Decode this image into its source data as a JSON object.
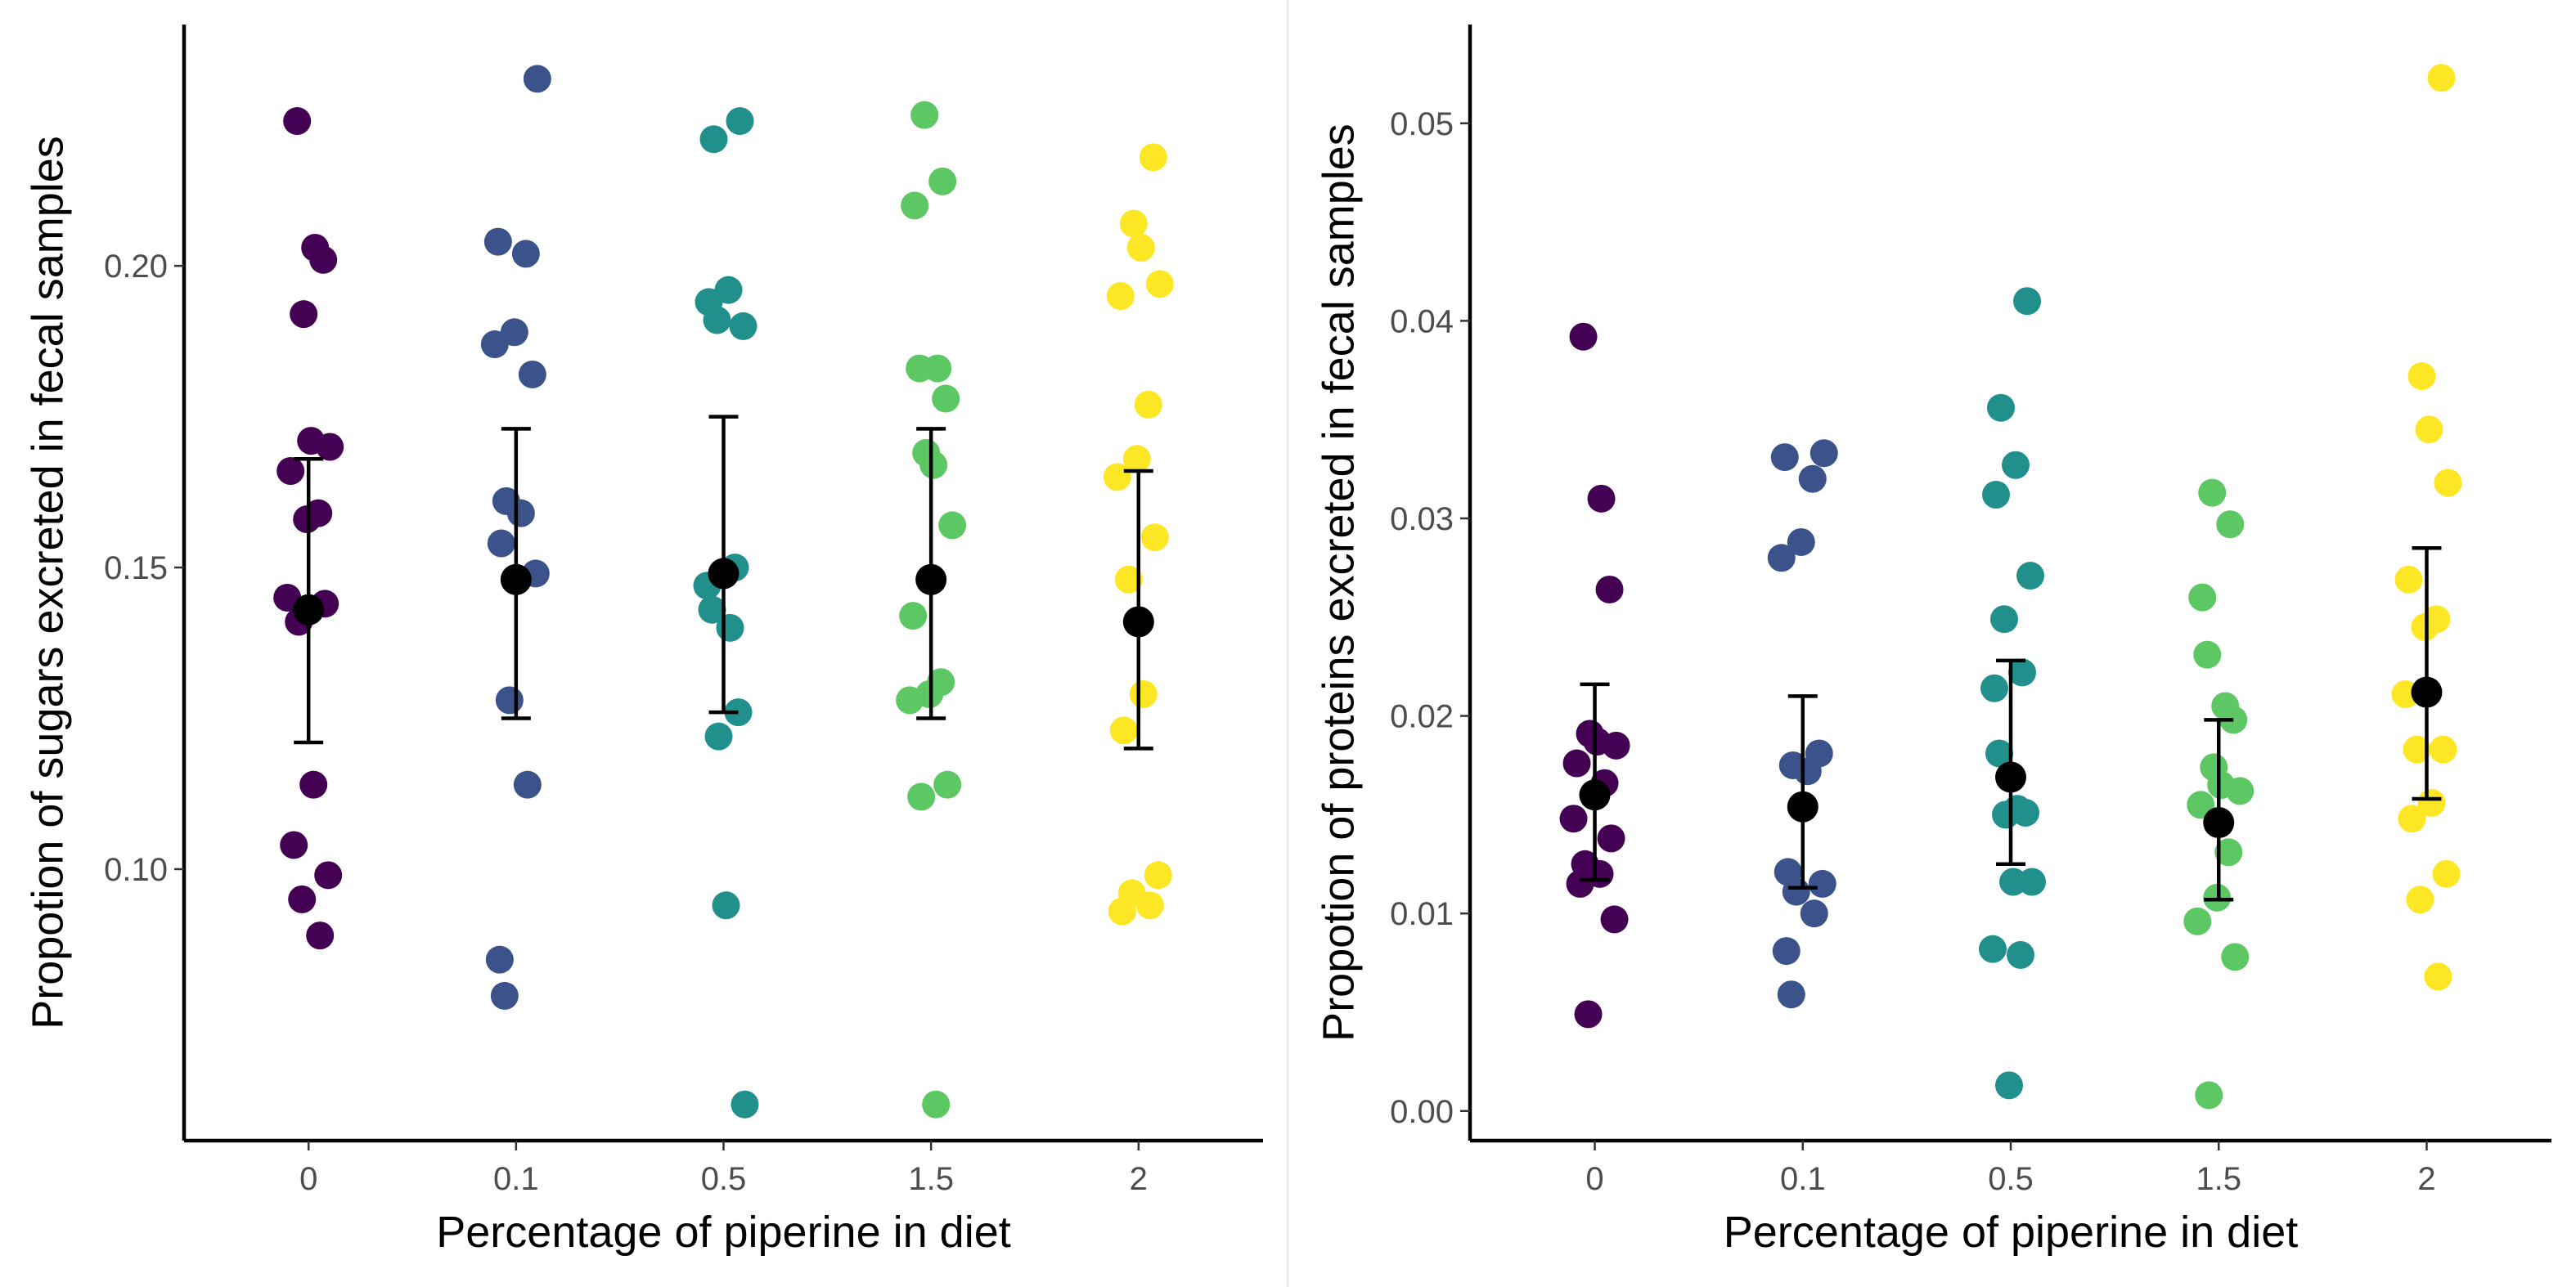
{
  "chart_data": [
    {
      "type": "scatter",
      "title": "",
      "xlabel": "Percentage of piperine in diet",
      "ylabel": "Propotion of sugars excreted in fecal samples",
      "categories": [
        "0",
        "0.1",
        "0.5",
        "1.5",
        "2"
      ],
      "ylim": [
        0.055,
        0.24
      ],
      "yticks": [
        0.1,
        0.15,
        0.2
      ],
      "ytick_labels": [
        "0.10",
        "0.15",
        "0.20"
      ],
      "grid": false,
      "legend": "none",
      "colors": [
        "#440154",
        "#3B528B",
        "#21908C",
        "#5DC863",
        "#FDE725"
      ],
      "points": [
        {
          "category": "0",
          "values": [
            0.224,
            0.203,
            0.201,
            0.192,
            0.171,
            0.17,
            0.166,
            0.159,
            0.158,
            0.145,
            0.144,
            0.141,
            0.114,
            0.104,
            0.099,
            0.095,
            0.089
          ]
        },
        {
          "category": "0.1",
          "values": [
            0.231,
            0.204,
            0.202,
            0.189,
            0.187,
            0.182,
            0.161,
            0.159,
            0.154,
            0.149,
            0.128,
            0.114,
            0.085,
            0.079
          ]
        },
        {
          "category": "0.5",
          "values": [
            0.224,
            0.221,
            0.196,
            0.194,
            0.19,
            0.191,
            0.15,
            0.147,
            0.143,
            0.14,
            0.126,
            0.122,
            0.094,
            0.061
          ]
        },
        {
          "category": "1.5",
          "values": [
            0.225,
            0.214,
            0.21,
            0.183,
            0.183,
            0.178,
            0.169,
            0.167,
            0.157,
            0.142,
            0.131,
            0.129,
            0.128,
            0.114,
            0.112,
            0.061
          ]
        },
        {
          "category": "2",
          "values": [
            0.218,
            0.207,
            0.203,
            0.197,
            0.195,
            0.177,
            0.168,
            0.165,
            0.155,
            0.148,
            0.129,
            0.123,
            0.099,
            0.096,
            0.094,
            0.093
          ]
        }
      ],
      "means": [
        0.143,
        0.148,
        0.149,
        0.148,
        0.141
      ],
      "error_low": [
        0.121,
        0.125,
        0.126,
        0.125,
        0.12
      ],
      "error_high": [
        0.168,
        0.173,
        0.175,
        0.173,
        0.166
      ]
    },
    {
      "type": "scatter",
      "title": "",
      "xlabel": "Percentage of piperine in diet",
      "ylabel": "Propotion of proteins excreted in fecal samples",
      "categories": [
        "0",
        "0.1",
        "0.5",
        "1.5",
        "2"
      ],
      "ylim": [
        -0.0015,
        0.055
      ],
      "yticks": [
        0.0,
        0.01,
        0.02,
        0.03,
        0.04,
        0.05
      ],
      "ytick_labels": [
        "0.00",
        "0.01",
        "0.02",
        "0.03",
        "0.04",
        "0.05"
      ],
      "grid": false,
      "legend": "none",
      "colors": [
        "#440154",
        "#3B528B",
        "#21908C",
        "#5DC863",
        "#FDE725"
      ],
      "points": [
        {
          "category": "0",
          "values": [
            0.0392,
            0.031,
            0.0264,
            0.0191,
            0.0187,
            0.0185,
            0.0176,
            0.0166,
            0.016,
            0.0148,
            0.0138,
            0.0125,
            0.012,
            0.0115,
            0.0097,
            0.0049
          ]
        },
        {
          "category": "0.1",
          "values": [
            0.0333,
            0.0331,
            0.032,
            0.0288,
            0.028,
            0.0181,
            0.0175,
            0.0172,
            0.0121,
            0.0115,
            0.0111,
            0.01,
            0.0081,
            0.0059
          ]
        },
        {
          "category": "0.5",
          "values": [
            0.041,
            0.0356,
            0.0327,
            0.0312,
            0.0271,
            0.0249,
            0.0222,
            0.0214,
            0.0181,
            0.0153,
            0.0151,
            0.015,
            0.0116,
            0.0116,
            0.0082,
            0.0079,
            0.0013
          ]
        },
        {
          "category": "1.5",
          "values": [
            0.0313,
            0.0297,
            0.026,
            0.0231,
            0.0205,
            0.0198,
            0.0174,
            0.0165,
            0.0162,
            0.0155,
            0.0131,
            0.0108,
            0.0096,
            0.0078,
            0.0008
          ]
        },
        {
          "category": "2",
          "values": [
            0.0523,
            0.0372,
            0.0345,
            0.0318,
            0.0269,
            0.0249,
            0.0245,
            0.0211,
            0.0183,
            0.0183,
            0.0156,
            0.0148,
            0.012,
            0.0107,
            0.0068
          ]
        }
      ],
      "means": [
        0.016,
        0.0154,
        0.0169,
        0.0146,
        0.0212
      ],
      "error_low": [
        0.0117,
        0.0113,
        0.0125,
        0.0107,
        0.0158
      ],
      "error_high": [
        0.0216,
        0.021,
        0.0228,
        0.0198,
        0.0285
      ]
    }
  ]
}
